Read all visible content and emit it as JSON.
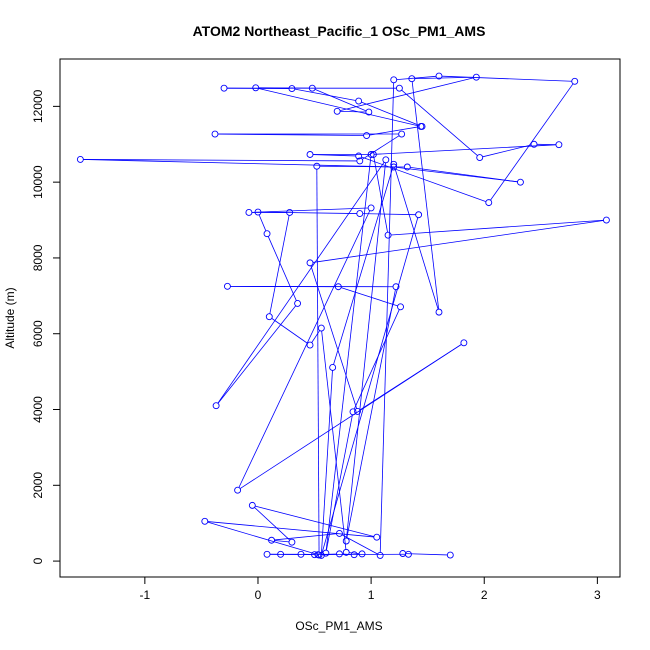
{
  "chart_data": {
    "type": "line",
    "title": "ATOM2 Northeast_Pacific_1 OSc_PM1_AMS",
    "xlabel": "OSc_PM1_AMS",
    "ylabel": "Altitude (m)",
    "xlim": [
      -1.75,
      3.2
    ],
    "ylim": [
      -420,
      13250
    ],
    "x_ticks": [
      -1,
      0,
      1,
      2,
      3
    ],
    "y_ticks": [
      0,
      2000,
      4000,
      6000,
      8000,
      10000,
      12000
    ],
    "grid": false,
    "color": "#0000ff",
    "marker": "open-circle",
    "series": [
      {
        "points": [
          [
            1.7,
            160
          ],
          [
            1.28,
            200
          ],
          [
            1.33,
            180
          ],
          [
            0.5,
            170
          ],
          [
            0.08,
            180
          ],
          [
            0.2,
            180
          ],
          [
            0.38,
            180
          ],
          [
            0.53,
            170
          ],
          [
            0.72,
            190
          ],
          [
            0.85,
            170
          ],
          [
            0.92,
            190
          ],
          [
            0.78,
            230
          ],
          [
            0.56,
            6150
          ],
          [
            0.46,
            5700
          ],
          [
            0.1,
            6450
          ],
          [
            0.28,
            9200
          ],
          [
            -0.08,
            9200
          ],
          [
            1.0,
            9320
          ],
          [
            -0.18,
            1870
          ],
          [
            1.82,
            5760
          ],
          [
            0.88,
            3950
          ],
          [
            0.46,
            7870
          ],
          [
            3.08,
            9000
          ],
          [
            1.15,
            8600
          ],
          [
            1.02,
            10730
          ],
          [
            0.46,
            10730
          ],
          [
            0.89,
            10690
          ],
          [
            2.04,
            9460
          ],
          [
            2.8,
            12660
          ],
          [
            1.6,
            12800
          ],
          [
            1.2,
            12700
          ],
          [
            1.08,
            150
          ],
          [
            0.72,
            730
          ],
          [
            0.12,
            550
          ],
          [
            0.3,
            500
          ],
          [
            -0.05,
            1470
          ],
          [
            1.05,
            630
          ],
          [
            -0.47,
            1050
          ],
          [
            0.54,
            160
          ],
          [
            0.52,
            10420
          ],
          [
            1.32,
            10400
          ],
          [
            2.32,
            10000
          ],
          [
            1.2,
            10400
          ],
          [
            -1.57,
            10600
          ],
          [
            0.9,
            10560
          ],
          [
            1.27,
            11270
          ],
          [
            -0.38,
            11270
          ],
          [
            0.96,
            11230
          ],
          [
            1.44,
            11470
          ],
          [
            -0.02,
            12490
          ],
          [
            0.48,
            12480
          ],
          [
            0.98,
            11850
          ],
          [
            0.7,
            11870
          ],
          [
            1.93,
            12770
          ],
          [
            1.36,
            12730
          ],
          [
            1.6,
            6570
          ],
          [
            1.2,
            10470
          ],
          [
            0.66,
            5110
          ],
          [
            0.56,
            150
          ],
          [
            1.42,
            9140
          ],
          [
            0.9,
            9170
          ],
          [
            0.0,
            9210
          ],
          [
            0.08,
            8640
          ],
          [
            0.35,
            6800
          ],
          [
            -0.37,
            4100
          ],
          [
            1.13,
            10590
          ],
          [
            0.78,
            530
          ],
          [
            1.22,
            7240
          ],
          [
            -0.27,
            7250
          ],
          [
            0.71,
            7240
          ],
          [
            1.26,
            6710
          ],
          [
            0.84,
            3940
          ],
          [
            0.6,
            210
          ],
          [
            1.0,
            10730
          ],
          [
            2.66,
            10990
          ],
          [
            2.44,
            11000
          ],
          [
            1.96,
            10650
          ],
          [
            1.25,
            12480
          ],
          [
            -0.3,
            12480
          ],
          [
            0.3,
            12470
          ],
          [
            0.89,
            12140
          ],
          [
            1.45,
            11470
          ]
        ]
      }
    ]
  }
}
